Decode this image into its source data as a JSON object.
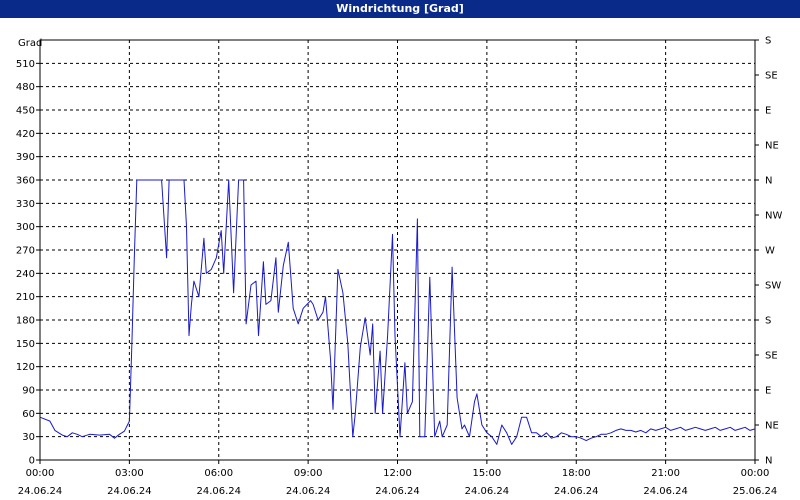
{
  "window": {
    "title": "Windrichtung [Grad]"
  },
  "colors": {
    "titlebar": "#0a2a8a",
    "series": "#1a1acc",
    "grid": "#000000"
  },
  "chart_data": {
    "type": "line",
    "title": "Windrichtung [Grad]",
    "ylabel": "Grad",
    "ylim": [
      0,
      540
    ],
    "yticks": [
      0,
      30,
      60,
      90,
      120,
      150,
      180,
      210,
      240,
      270,
      300,
      330,
      360,
      390,
      420,
      450,
      480,
      510
    ],
    "right_axis_labels": [
      "N",
      "NE",
      "E",
      "SE",
      "S",
      "SW",
      "W",
      "NW",
      "N",
      "NE",
      "E",
      "SE",
      "S"
    ],
    "xlim_hours": [
      0,
      24
    ],
    "xticks": [
      {
        "time": "00:00",
        "date": "24.06.24"
      },
      {
        "time": "03:00",
        "date": "24.06.24"
      },
      {
        "time": "06:00",
        "date": "24.06.24"
      },
      {
        "time": "09:00",
        "date": "24.06.24"
      },
      {
        "time": "12:00",
        "date": "24.06.24"
      },
      {
        "time": "15:00",
        "date": "24.06.24"
      },
      {
        "time": "18:00",
        "date": "24.06.24"
      },
      {
        "time": "21:00",
        "date": "24.06.24"
      },
      {
        "time": "00:00",
        "date": "25.06.24"
      }
    ],
    "grid": true,
    "series": [
      {
        "points": [
          [
            "00:00",
            55
          ],
          [
            "00:20",
            50
          ],
          [
            "00:30",
            38
          ],
          [
            "00:45",
            32
          ],
          [
            "00:55",
            30
          ],
          [
            "01:05",
            35
          ],
          [
            "01:15",
            33
          ],
          [
            "01:25",
            30
          ],
          [
            "01:40",
            33
          ],
          [
            "02:00",
            32
          ],
          [
            "02:20",
            33
          ],
          [
            "02:30",
            28
          ],
          [
            "02:40",
            33
          ],
          [
            "02:50",
            37
          ],
          [
            "03:00",
            50
          ],
          [
            "03:05",
            150
          ],
          [
            "03:10",
            260
          ],
          [
            "03:15",
            360
          ],
          [
            "03:25",
            360
          ],
          [
            "03:40",
            360
          ],
          [
            "03:50",
            360
          ],
          [
            "04:00",
            360
          ],
          [
            "04:05",
            360
          ],
          [
            "04:15",
            260
          ],
          [
            "04:20",
            360
          ],
          [
            "04:30",
            360
          ],
          [
            "04:40",
            360
          ],
          [
            "04:50",
            360
          ],
          [
            "04:55",
            300
          ],
          [
            "05:00",
            160
          ],
          [
            "05:05",
            200
          ],
          [
            "05:10",
            230
          ],
          [
            "05:20",
            210
          ],
          [
            "05:30",
            285
          ],
          [
            "05:35",
            240
          ],
          [
            "05:45",
            245
          ],
          [
            "05:55",
            260
          ],
          [
            "06:05",
            295
          ],
          [
            "06:10",
            240
          ],
          [
            "06:20",
            360
          ],
          [
            "06:30",
            215
          ],
          [
            "06:40",
            360
          ],
          [
            "06:50",
            360
          ],
          [
            "06:55",
            175
          ],
          [
            "07:05",
            225
          ],
          [
            "07:15",
            230
          ],
          [
            "07:20",
            160
          ],
          [
            "07:30",
            255
          ],
          [
            "07:35",
            200
          ],
          [
            "07:45",
            205
          ],
          [
            "07:55",
            260
          ],
          [
            "08:00",
            190
          ],
          [
            "08:10",
            250
          ],
          [
            "08:20",
            280
          ],
          [
            "08:30",
            195
          ],
          [
            "08:40",
            175
          ],
          [
            "08:50",
            195
          ],
          [
            "09:05",
            205
          ],
          [
            "09:10",
            200
          ],
          [
            "09:20",
            180
          ],
          [
            "09:30",
            190
          ],
          [
            "09:35",
            210
          ],
          [
            "09:45",
            130
          ],
          [
            "09:50",
            65
          ],
          [
            "10:00",
            245
          ],
          [
            "10:10",
            215
          ],
          [
            "10:20",
            150
          ],
          [
            "10:30",
            30
          ],
          [
            "10:35",
            60
          ],
          [
            "10:45",
            145
          ],
          [
            "10:55",
            183
          ],
          [
            "11:05",
            135
          ],
          [
            "11:10",
            175
          ],
          [
            "11:15",
            60
          ],
          [
            "11:25",
            140
          ],
          [
            "11:30",
            60
          ],
          [
            "11:40",
            160
          ],
          [
            "11:50",
            290
          ],
          [
            "11:55",
            160
          ],
          [
            "12:05",
            30
          ],
          [
            "12:15",
            125
          ],
          [
            "12:20",
            60
          ],
          [
            "12:30",
            75
          ],
          [
            "12:40",
            310
          ],
          [
            "12:45",
            30
          ],
          [
            "12:55",
            30
          ],
          [
            "13:05",
            235
          ],
          [
            "13:15",
            30
          ],
          [
            "13:25",
            50
          ],
          [
            "13:30",
            30
          ],
          [
            "13:40",
            45
          ],
          [
            "13:50",
            248
          ],
          [
            "14:00",
            80
          ],
          [
            "14:10",
            40
          ],
          [
            "14:15",
            45
          ],
          [
            "14:25",
            30
          ],
          [
            "14:35",
            75
          ],
          [
            "14:40",
            85
          ],
          [
            "14:50",
            45
          ],
          [
            "15:00",
            35
          ],
          [
            "15:10",
            30
          ],
          [
            "15:20",
            20
          ],
          [
            "15:30",
            45
          ],
          [
            "15:40",
            35
          ],
          [
            "15:50",
            20
          ],
          [
            "16:00",
            30
          ],
          [
            "16:10",
            55
          ],
          [
            "16:20",
            55
          ],
          [
            "16:30",
            35
          ],
          [
            "16:40",
            35
          ],
          [
            "16:50",
            30
          ],
          [
            "17:00",
            35
          ],
          [
            "17:10",
            28
          ],
          [
            "17:20",
            30
          ],
          [
            "17:30",
            35
          ],
          [
            "17:40",
            33
          ],
          [
            "17:50",
            30
          ],
          [
            "18:00",
            30
          ],
          [
            "18:10",
            28
          ],
          [
            "18:20",
            25
          ],
          [
            "18:30",
            28
          ],
          [
            "18:40",
            30
          ],
          [
            "18:50",
            33
          ],
          [
            "19:00",
            33
          ],
          [
            "19:10",
            35
          ],
          [
            "19:20",
            38
          ],
          [
            "19:30",
            40
          ],
          [
            "19:40",
            38
          ],
          [
            "19:50",
            38
          ],
          [
            "20:00",
            36
          ],
          [
            "20:10",
            38
          ],
          [
            "20:20",
            35
          ],
          [
            "20:30",
            40
          ],
          [
            "20:40",
            38
          ],
          [
            "20:50",
            40
          ],
          [
            "21:00",
            42
          ],
          [
            "21:10",
            38
          ],
          [
            "21:20",
            40
          ],
          [
            "21:30",
            42
          ],
          [
            "21:40",
            38
          ],
          [
            "21:50",
            40
          ],
          [
            "22:00",
            42
          ],
          [
            "22:10",
            40
          ],
          [
            "22:20",
            38
          ],
          [
            "22:30",
            40
          ],
          [
            "22:40",
            42
          ],
          [
            "22:50",
            38
          ],
          [
            "23:00",
            40
          ],
          [
            "23:10",
            42
          ],
          [
            "23:20",
            38
          ],
          [
            "23:30",
            40
          ],
          [
            "23:40",
            42
          ],
          [
            "23:50",
            38
          ],
          [
            "24:00",
            40
          ]
        ]
      }
    ]
  }
}
